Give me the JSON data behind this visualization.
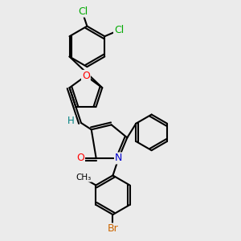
{
  "background_color": "#ebebeb",
  "bond_color": "#000000",
  "atom_colors": {
    "O": "#ff0000",
    "N": "#0000cd",
    "Cl": "#00aa00",
    "Br": "#cc6600",
    "H": "#008080",
    "C": "#000000"
  },
  "figsize": [
    3.0,
    3.0
  ],
  "dpi": 100
}
